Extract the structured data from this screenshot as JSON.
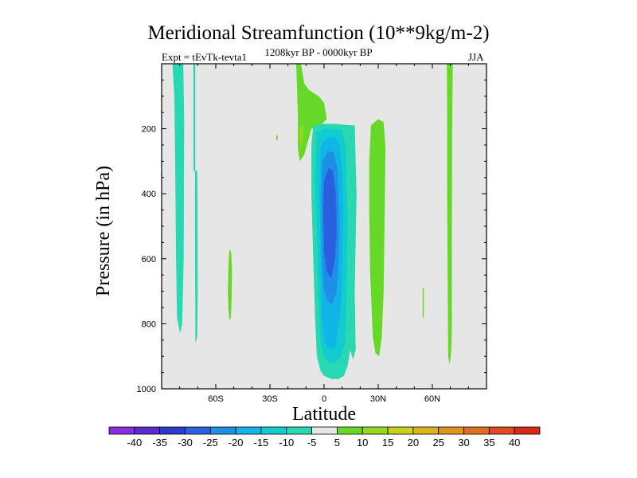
{
  "chart_data": {
    "type": "contour",
    "title": "Meridional Streamfunction (10**9kg/m-2)",
    "experiment_label": "Expt = tEvTk-tevta1",
    "period_label": "1208kyr BP - 0000kyr BP",
    "season_label": "JJA",
    "xlabel": "Latitude",
    "ylabel": "Pressure (in hPa)",
    "xlim": [
      -90,
      90
    ],
    "ylim": [
      1000,
      0
    ],
    "x_ticks": [
      {
        "value": -60,
        "label": "60S"
      },
      {
        "value": -30,
        "label": "30S"
      },
      {
        "value": 0,
        "label": "0"
      },
      {
        "value": 30,
        "label": "30N"
      },
      {
        "value": 60,
        "label": "60N"
      }
    ],
    "y_ticks": [
      {
        "value": 200,
        "label": "200"
      },
      {
        "value": 400,
        "label": "400"
      },
      {
        "value": 600,
        "label": "600"
      },
      {
        "value": 800,
        "label": "800"
      },
      {
        "value": 1000,
        "label": "1000"
      }
    ],
    "background_color": "#e6e6e6",
    "colorbar": {
      "labels": [
        "-40",
        "-35",
        "-30",
        "-25",
        "-20",
        "-15",
        "-10",
        "-5",
        "5",
        "10",
        "15",
        "20",
        "25",
        "30",
        "35",
        "40"
      ],
      "colors": [
        "#8a2be2",
        "#5a2ad0",
        "#2a3cd0",
        "#2a60e0",
        "#1e8fe6",
        "#10b4e6",
        "#10cbd0",
        "#28d8b0",
        "#e6e6e6",
        "#66d828",
        "#96d81e",
        "#c8d21e",
        "#dcb41e",
        "#e0961e",
        "#e0701e",
        "#e04a1e",
        "#d82a14"
      ]
    },
    "regions": [
      {
        "name": "cell-65S-7-5-upper",
        "level": -7.5,
        "color": "#28d8b0",
        "points": [
          [
            -84,
            0
          ],
          [
            -78,
            0
          ],
          [
            -77.5,
            180
          ],
          [
            -77.8,
            600
          ],
          [
            -78.6,
            800
          ],
          [
            -79.8,
            830
          ],
          [
            -81.5,
            780
          ],
          [
            -82,
            600
          ],
          [
            -82.5,
            300
          ],
          [
            -83,
            100
          ]
        ]
      },
      {
        "name": "cell-70S-thin-line",
        "level": -7.5,
        "color": "#28d8b0",
        "points": [
          [
            -72.4,
            0
          ],
          [
            -71.4,
            0
          ],
          [
            -71.4,
            330
          ],
          [
            -72.4,
            330
          ]
        ]
      },
      {
        "name": "cell-70S-7-5-lower",
        "level": -7.5,
        "color": "#28d8b0",
        "points": [
          [
            -71.5,
            330
          ],
          [
            -70.3,
            330
          ],
          [
            -70.1,
            450
          ],
          [
            -70,
            700
          ],
          [
            -70.3,
            840
          ],
          [
            -71.3,
            860
          ],
          [
            -71.4,
            700
          ],
          [
            -71.5,
            500
          ]
        ]
      },
      {
        "name": "cell-50S-7-5",
        "level": 7.5,
        "color": "#66d828",
        "points": [
          [
            -52.5,
            570
          ],
          [
            -51.5,
            580
          ],
          [
            -51,
            640
          ],
          [
            -51.2,
            720
          ],
          [
            -51.6,
            780
          ],
          [
            -52.4,
            790
          ],
          [
            -53,
            760
          ],
          [
            -53.3,
            700
          ],
          [
            -53,
            620
          ]
        ]
      },
      {
        "name": "cell-20S-7-5-positive",
        "level": 7.5,
        "color": "#66d828",
        "points": [
          [
            -15.5,
            0
          ],
          [
            -12.8,
            0
          ],
          [
            -11,
            60
          ],
          [
            -8.5,
            80
          ],
          [
            -3,
            100
          ],
          [
            0,
            120
          ],
          [
            1.5,
            170
          ],
          [
            -2,
            190
          ],
          [
            -7,
            200
          ],
          [
            -11,
            280
          ],
          [
            -13.5,
            300
          ],
          [
            -14.5,
            260
          ],
          [
            -14.5,
            160
          ],
          [
            -15,
            70
          ]
        ]
      },
      {
        "name": "cell-20S-core-12-5",
        "level": 12.5,
        "color": "#96d81e",
        "points": [
          [
            -13.5,
            195
          ],
          [
            -11.7,
            190
          ],
          [
            -11.5,
            225
          ],
          [
            -12.5,
            250
          ],
          [
            -13.7,
            240
          ]
        ]
      },
      {
        "name": "cell-25S-speck",
        "level": 7.5,
        "color": "#66d828",
        "points": [
          [
            -26.5,
            220
          ],
          [
            -25.7,
            220
          ],
          [
            -25.7,
            235
          ],
          [
            -26.5,
            235
          ]
        ]
      },
      {
        "name": "cell-eq-minus-7-5",
        "level": -7.5,
        "color": "#28d8b0",
        "points": [
          [
            -6,
            190
          ],
          [
            0,
            185
          ],
          [
            6,
            185
          ],
          [
            12,
            188
          ],
          [
            17,
            190
          ],
          [
            18,
            400
          ],
          [
            17,
            700
          ],
          [
            17.5,
            880
          ],
          [
            16,
            910
          ],
          [
            14.5,
            880
          ],
          [
            13,
            930
          ],
          [
            11,
            960
          ],
          [
            8,
            970
          ],
          [
            4,
            970
          ],
          [
            0,
            960
          ],
          [
            -2,
            945
          ],
          [
            -4,
            900
          ],
          [
            -5,
            780
          ],
          [
            -6,
            600
          ],
          [
            -7,
            400
          ],
          [
            -7,
            250
          ]
        ]
      },
      {
        "name": "cell-eq-minus-12-5",
        "level": -12.5,
        "color": "#10cbd0",
        "points": [
          [
            -4,
            215
          ],
          [
            0,
            200
          ],
          [
            5,
            200
          ],
          [
            10,
            205
          ],
          [
            12,
            260
          ],
          [
            13,
            500
          ],
          [
            12.5,
            700
          ],
          [
            11.5,
            860
          ],
          [
            9.5,
            900
          ],
          [
            6,
            920
          ],
          [
            3,
            920
          ],
          [
            0,
            900
          ],
          [
            -2,
            860
          ],
          [
            -3,
            700
          ],
          [
            -4,
            500
          ],
          [
            -5,
            350
          ]
        ]
      },
      {
        "name": "cell-eq-minus-17-5",
        "level": -17.5,
        "color": "#10b4e6",
        "points": [
          [
            -2,
            260
          ],
          [
            1,
            230
          ],
          [
            5,
            225
          ],
          [
            8,
            240
          ],
          [
            10,
            320
          ],
          [
            10.5,
            500
          ],
          [
            9.8,
            680
          ],
          [
            9,
            760
          ],
          [
            6.5,
            870
          ],
          [
            3.5,
            880
          ],
          [
            0.5,
            860
          ],
          [
            -1,
            800
          ],
          [
            -2,
            600
          ],
          [
            -2.5,
            400
          ]
        ]
      },
      {
        "name": "cell-eq-minus-22-5",
        "level": -22.5,
        "color": "#1e8fe6",
        "points": [
          [
            -1,
            300
          ],
          [
            2,
            270
          ],
          [
            5,
            270
          ],
          [
            7.5,
            320
          ],
          [
            8.5,
            500
          ],
          [
            8,
            620
          ],
          [
            7,
            700
          ],
          [
            4.5,
            740
          ],
          [
            2,
            730
          ],
          [
            0,
            700
          ],
          [
            -1,
            600
          ],
          [
            -1.5,
            420
          ]
        ]
      },
      {
        "name": "cell-eq-minus-27-5",
        "level": -27.5,
        "color": "#2a60e0",
        "points": [
          [
            0,
            360
          ],
          [
            2.5,
            320
          ],
          [
            5,
            330
          ],
          [
            6.5,
            400
          ],
          [
            7,
            520
          ],
          [
            6,
            600
          ],
          [
            4,
            660
          ],
          [
            1.5,
            640
          ],
          [
            0,
            580
          ],
          [
            -0.5,
            450
          ]
        ]
      },
      {
        "name": "cell-20N-7-5",
        "level": 7.5,
        "color": "#66d828",
        "points": [
          [
            26,
            190
          ],
          [
            30,
            170
          ],
          [
            33,
            180
          ],
          [
            34,
            260
          ],
          [
            33.5,
            500
          ],
          [
            33,
            700
          ],
          [
            32,
            840
          ],
          [
            30.5,
            900
          ],
          [
            28.5,
            890
          ],
          [
            27,
            840
          ],
          [
            25.5,
            640
          ],
          [
            25,
            450
          ],
          [
            25,
            300
          ]
        ]
      },
      {
        "name": "cell-55N-line",
        "level": 7.5,
        "color": "#66d828",
        "points": [
          [
            54.6,
            690
          ],
          [
            55.3,
            690
          ],
          [
            55.3,
            780
          ],
          [
            54.6,
            780
          ]
        ]
      },
      {
        "name": "cell-68N-7-5",
        "level": 7.5,
        "color": "#66d828",
        "points": [
          [
            68,
            0
          ],
          [
            71.3,
            0
          ],
          [
            71,
            200
          ],
          [
            70.8,
            500
          ],
          [
            70.8,
            800
          ],
          [
            70.5,
            880
          ],
          [
            70,
            910
          ],
          [
            69.5,
            925
          ],
          [
            68.8,
            900
          ],
          [
            68.5,
            700
          ],
          [
            68.2,
            400
          ],
          [
            68.2,
            150
          ]
        ]
      }
    ]
  }
}
